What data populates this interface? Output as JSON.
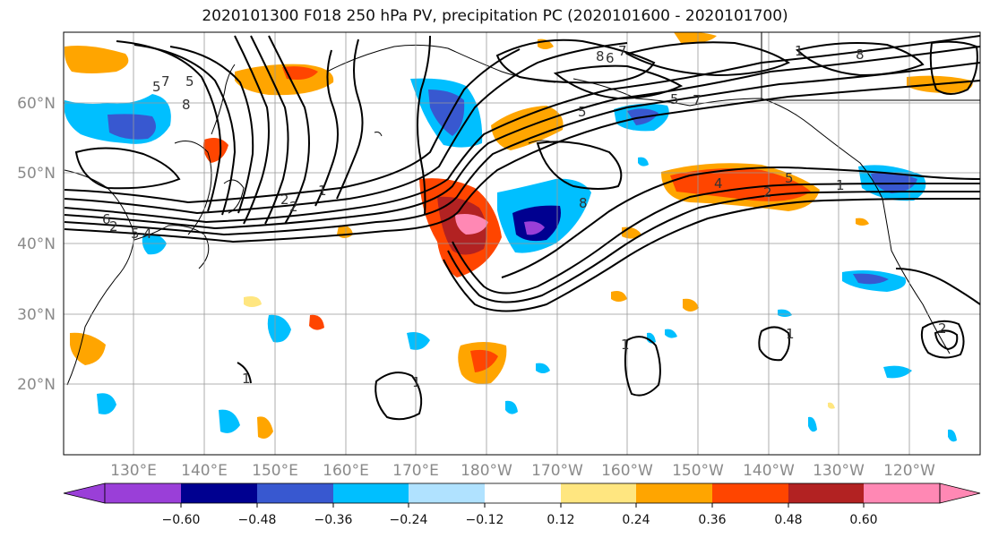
{
  "title": "2020101300 F018 250 hPa PV, precipitation PC (2020101600 - 2020101700)",
  "map": {
    "lat_labels": [
      "60°N",
      "50°N",
      "40°N",
      "30°N",
      "20°N"
    ],
    "lon_labels": [
      "130°E",
      "140°E",
      "150°E",
      "160°E",
      "170°E",
      "180°W",
      "170°W",
      "160°W",
      "150°W",
      "140°W",
      "130°W",
      "120°W"
    ],
    "contour_labels": [
      "5",
      "8",
      "5",
      "7",
      "8",
      "6",
      "7",
      "5",
      "7",
      "5",
      "2",
      "1",
      "2",
      "6",
      "5",
      "4",
      "2",
      "8",
      "4",
      "2",
      "5",
      "8",
      "1",
      "1",
      "1",
      "1",
      "1",
      "2",
      "1"
    ]
  },
  "colorbar": {
    "tick_labels": [
      "−0.60",
      "−0.48",
      "−0.36",
      "−0.24",
      "−0.12",
      "0.12",
      "0.24",
      "0.36",
      "0.48",
      "0.60"
    ],
    "colors": [
      "#9a3fd8",
      "#000090",
      "#3858d0",
      "#00bfff",
      "#b0e2ff",
      "#ffffff",
      "#ffe680",
      "#ffa500",
      "#ff4500",
      "#b22222",
      "#ff88b4"
    ]
  }
}
